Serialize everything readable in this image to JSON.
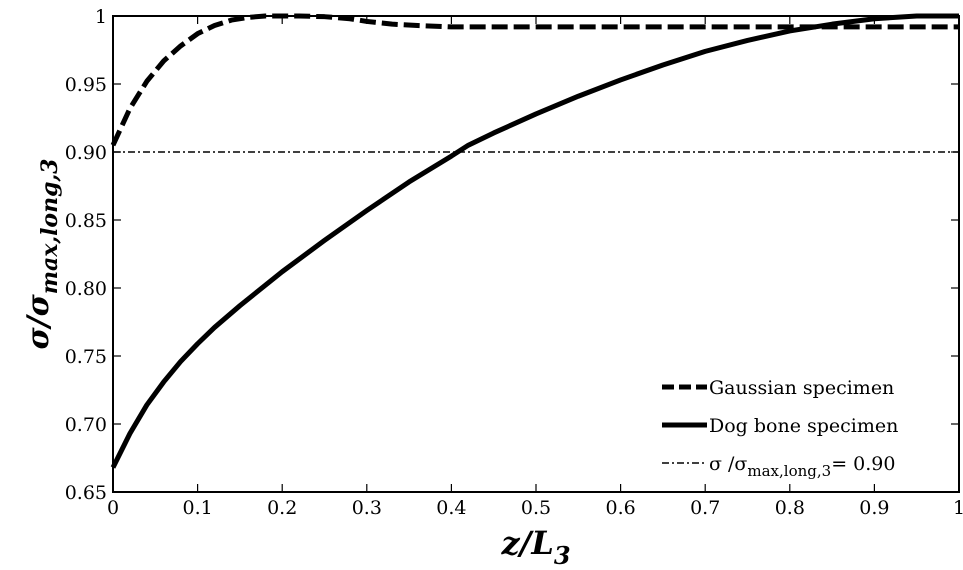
{
  "chart_data": {
    "type": "line",
    "xlabel": {
      "main": "z/L",
      "sub": "3"
    },
    "ylabel": {
      "main": "σ/σ",
      "sub": "max,long,3"
    },
    "xlim": [
      0,
      1
    ],
    "ylim": [
      0.65,
      1.0
    ],
    "xticks": [
      "0",
      "0.1",
      "0.2",
      "0.3",
      "0.4",
      "0.5",
      "0.6",
      "0.7",
      "0.8",
      "0.9",
      "1"
    ],
    "yticks": [
      "0.65",
      "0.70",
      "0.75",
      "0.80",
      "0.85",
      "0.90",
      "0.95",
      "1"
    ],
    "grid": false,
    "legend_position": "bottom-right",
    "series": [
      {
        "name": "Gaussian specimen",
        "style": "dashed",
        "color": "#000000",
        "x": [
          0,
          0.02,
          0.04,
          0.06,
          0.08,
          0.1,
          0.12,
          0.14,
          0.16,
          0.18,
          0.2,
          0.22,
          0.25,
          0.28,
          0.3,
          0.33,
          0.36,
          0.4,
          0.45,
          0.5,
          0.6,
          0.7,
          0.8,
          0.9,
          1.0
        ],
        "y": [
          0.905,
          0.932,
          0.952,
          0.967,
          0.978,
          0.987,
          0.993,
          0.997,
          0.999,
          1.0,
          1.0,
          1.0,
          0.9995,
          0.998,
          0.996,
          0.994,
          0.993,
          0.992,
          0.992,
          0.992,
          0.992,
          0.992,
          0.992,
          0.992,
          0.992
        ]
      },
      {
        "name": "Dog bone specimen",
        "style": "solid",
        "color": "#000000",
        "x": [
          0,
          0.02,
          0.04,
          0.06,
          0.08,
          0.1,
          0.12,
          0.15,
          0.2,
          0.25,
          0.3,
          0.35,
          0.4,
          0.42,
          0.45,
          0.5,
          0.55,
          0.6,
          0.65,
          0.7,
          0.75,
          0.8,
          0.85,
          0.9,
          0.95,
          1.0
        ],
        "y": [
          0.668,
          0.693,
          0.714,
          0.731,
          0.746,
          0.759,
          0.771,
          0.787,
          0.812,
          0.835,
          0.857,
          0.878,
          0.897,
          0.905,
          0.914,
          0.928,
          0.941,
          0.953,
          0.964,
          0.974,
          0.982,
          0.989,
          0.994,
          0.998,
          1.0,
          1.0
        ]
      },
      {
        "name_main": "σ /σ",
        "name_sub": "max,long,3",
        "name_suffix": "= 0.90",
        "style": "dash-dot",
        "color": "#000000",
        "x": [
          0,
          1
        ],
        "y": [
          0.9,
          0.9
        ]
      }
    ]
  }
}
